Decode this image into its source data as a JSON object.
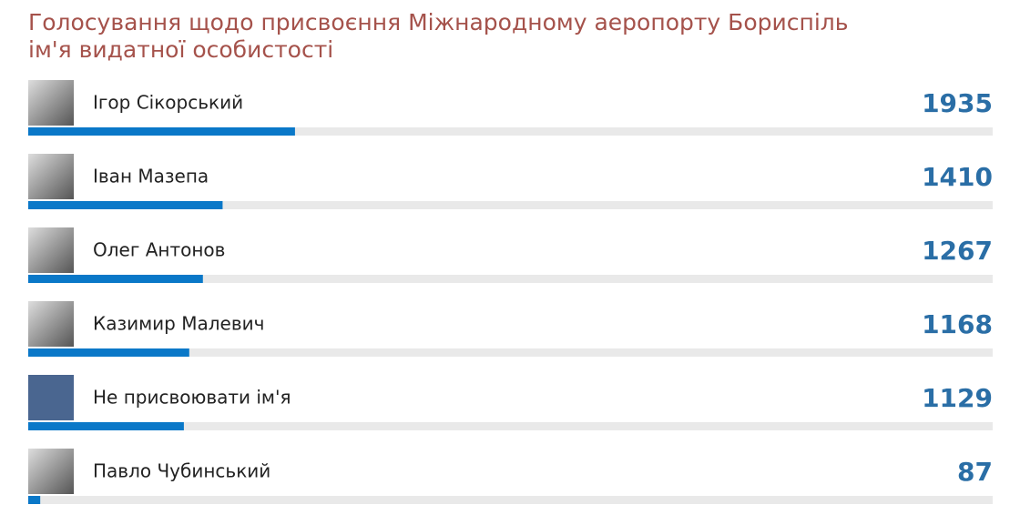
{
  "title": [
    "Голосування щодо присвоєння Міжнародному аеропорту Бориспіль",
    "ім'я видатної особистості"
  ],
  "items": [
    {
      "name": "Ігор Сікорський",
      "votes": 1935
    },
    {
      "name": "Іван Мазепа",
      "votes": 1410
    },
    {
      "name": "Олег Антонов",
      "votes": 1267
    },
    {
      "name": "Казимир Малевич",
      "votes": 1168
    },
    {
      "name": "Не присвоювати ім'я",
      "votes": 1129
    },
    {
      "name": "Павло Чубинський",
      "votes": 87
    }
  ]
}
